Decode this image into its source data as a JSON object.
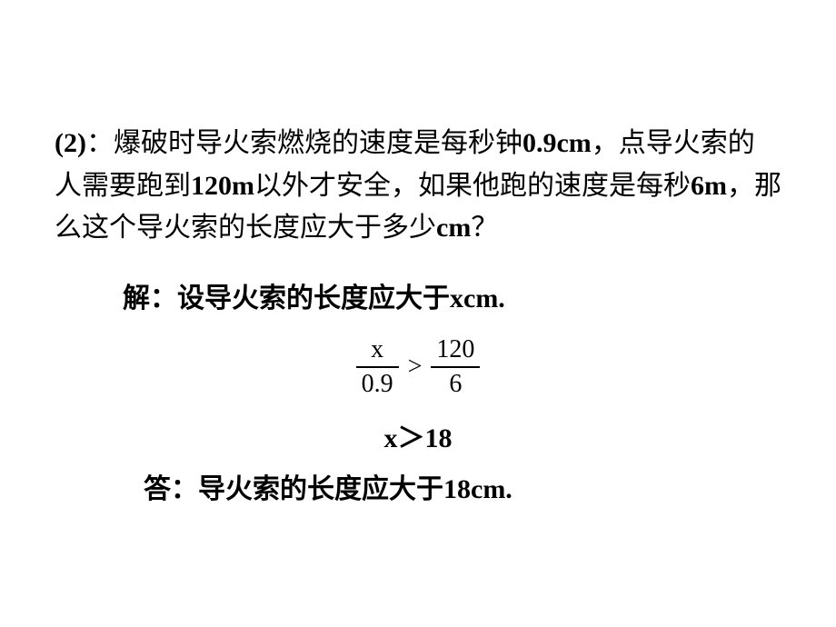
{
  "problem": {
    "prefix": "(2)",
    "colon": "：",
    "text_seg1": "爆破时导火索燃烧的速度是每秒钟",
    "val1": "0.9cm",
    "text_seg2": "，点导火索的人需要跑到",
    "val2": "120m",
    "text_seg3": "以外才安全，如果他跑的速度是每秒",
    "val3": "6m",
    "text_seg4": "，那么这个导火索的长度应大于多少",
    "val4": "cm",
    "text_seg5": "？"
  },
  "solution": {
    "let_statement": "解：设导火索的长度应大于xcm.",
    "fraction": {
      "left_num": "x",
      "left_den": "0.9",
      "operator": ">",
      "right_num": "120",
      "right_den": "6"
    },
    "result": "x＞18",
    "answer": "答：导火索的长度应大于18cm."
  },
  "style": {
    "background_color": "#ffffff",
    "text_color": "#000000",
    "body_fontsize": 30,
    "fraction_fontsize": 28,
    "line_height": 1.55
  }
}
